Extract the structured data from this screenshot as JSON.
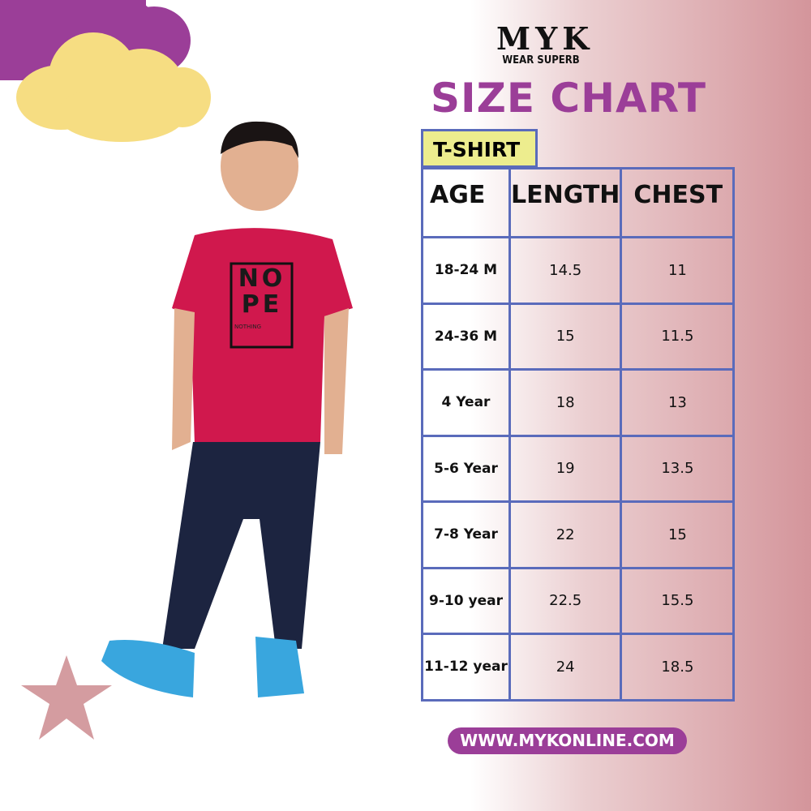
{
  "brand": {
    "logo_text": "MYK",
    "tagline": "WEAR SUPERB"
  },
  "title": "SIZE CHART",
  "category_tab": "T-SHIRT",
  "table": {
    "headers": [
      "AGE",
      "LENGTH",
      "CHEST"
    ],
    "rows": [
      [
        "18-24 M",
        "14.5",
        "11"
      ],
      [
        "24-36 M",
        "15",
        "11.5"
      ],
      [
        "4 Year",
        "18",
        "13"
      ],
      [
        "5-6 Year",
        "19",
        "13.5"
      ],
      [
        "7-8 Year",
        "22",
        "15"
      ],
      [
        "9-10 year",
        "22.5",
        "15.5"
      ],
      [
        "11-12 year",
        "24",
        "18.5"
      ]
    ]
  },
  "tshirt_print": {
    "line1": "NO",
    "line2": "PE",
    "line3": "NOTHING"
  },
  "website": "WWW.MYKONLINE.COM",
  "colors": {
    "purple": "#9b3e98",
    "yellow": "#f6dd82",
    "border": "#5a6bbb",
    "tab": "#eded8e",
    "star": "#d49ca0",
    "shirt": "#d0184d",
    "jeans": "#1c2440"
  }
}
